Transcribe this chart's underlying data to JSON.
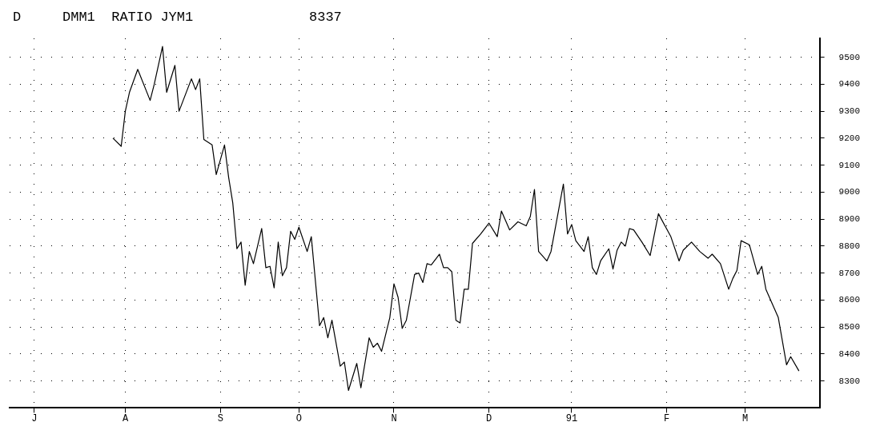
{
  "chart_data": {
    "type": "line",
    "title": "DMM1  RATIO JYM1",
    "annotations": [
      "D",
      "8337"
    ],
    "categories": [
      null,
      null,
      null,
      null,
      null,
      null,
      "J",
      null,
      null,
      null,
      null,
      null,
      null,
      null,
      null,
      null,
      null,
      null,
      null,
      null,
      null,
      null,
      null,
      null,
      null,
      null,
      null,
      null,
      "A",
      null,
      null,
      null,
      null,
      null,
      null,
      null,
      null,
      null,
      null,
      null,
      null,
      null,
      null,
      null,
      null,
      null,
      null,
      null,
      null,
      null,
      null,
      "S",
      null,
      null,
      null,
      null,
      null,
      null,
      null,
      null,
      null,
      null,
      null,
      null,
      null,
      null,
      null,
      null,
      null,
      null,
      "O",
      null,
      null,
      null,
      null,
      null,
      null,
      null,
      null,
      null,
      null,
      null,
      null,
      null,
      null,
      null,
      null,
      null,
      null,
      null,
      null,
      null,
      null,
      "N",
      null,
      null,
      null,
      null,
      null,
      null,
      null,
      null,
      null,
      null,
      null,
      null,
      null,
      null,
      null,
      null,
      null,
      null,
      null,
      null,
      null,
      null,
      "D",
      null,
      null,
      null,
      null,
      null,
      null,
      null,
      null,
      null,
      null,
      null,
      null,
      null,
      null,
      null,
      null,
      null,
      null,
      null,
      "91",
      null,
      null,
      null,
      null,
      null,
      null,
      null,
      null,
      null,
      null,
      null,
      null,
      null,
      null,
      null,
      null,
      null,
      null,
      null,
      null,
      null,
      null,
      "F",
      null,
      null,
      null,
      null,
      null,
      null,
      null,
      null,
      null,
      null,
      null,
      null,
      null,
      null,
      null,
      null,
      null,
      null,
      "M",
      null,
      null,
      null,
      null,
      null,
      null,
      null,
      null,
      null,
      null,
      null,
      null,
      null,
      null,
      null,
      null,
      null,
      null
    ],
    "ylim": [
      8200,
      9570
    ],
    "yticks": [
      8300,
      8400,
      8500,
      8600,
      8700,
      8800,
      8900,
      9000,
      9100,
      9200,
      9300,
      9400,
      9500
    ],
    "grid": true,
    "legend": false,
    "series": [
      {
        "color": "#000000",
        "values": [
          null,
          null,
          null,
          null,
          null,
          null,
          null,
          null,
          null,
          null,
          null,
          null,
          null,
          null,
          null,
          null,
          null,
          null,
          null,
          null,
          null,
          null,
          null,
          null,
          null,
          9200,
          null,
          9170,
          9300,
          9370,
          null,
          9455,
          null,
          null,
          9340,
          9400,
          null,
          9540,
          9370,
          null,
          9470,
          9300,
          9340,
          null,
          9420,
          9380,
          9420,
          9195,
          null,
          9175,
          9065,
          null,
          9175,
          9055,
          8960,
          8790,
          8815,
          8655,
          8780,
          8735,
          null,
          8865,
          8720,
          8725,
          8645,
          8815,
          8690,
          8720,
          8855,
          8825,
          8870,
          null,
          8780,
          8835,
          null,
          8505,
          8535,
          8460,
          8525,
          null,
          8355,
          8370,
          8265,
          null,
          8365,
          8275,
          null,
          8460,
          8425,
          8440,
          8410,
          null,
          8535,
          8660,
          8610,
          8495,
          8525,
          null,
          8695,
          8700,
          8665,
          8735,
          8730,
          null,
          8770,
          8720,
          8720,
          8705,
          8525,
          8515,
          8640,
          8640,
          8810,
          null,
          8845,
          null,
          8885,
          null,
          8835,
          8930,
          null,
          8860,
          null,
          8890,
          null,
          8875,
          8910,
          9010,
          8780,
          null,
          8745,
          8780,
          null,
          null,
          9030,
          8845,
          8880,
          8820,
          null,
          8780,
          8835,
          8720,
          8695,
          8745,
          null,
          8790,
          8715,
          8785,
          8815,
          8800,
          8865,
          8860,
          null,
          8815,
          null,
          8765,
          null,
          8920,
          null,
          null,
          8835,
          null,
          8745,
          8785,
          null,
          8815,
          null,
          8780,
          null,
          8755,
          8770,
          null,
          8735,
          null,
          8640,
          8680,
          8710,
          8820,
          null,
          8805,
          null,
          8695,
          8725,
          8640,
          null,
          8570,
          8535,
          null,
          8360,
          8390,
          null,
          8337,
          null,
          null,
          null,
          null,
          null
        ]
      }
    ]
  }
}
